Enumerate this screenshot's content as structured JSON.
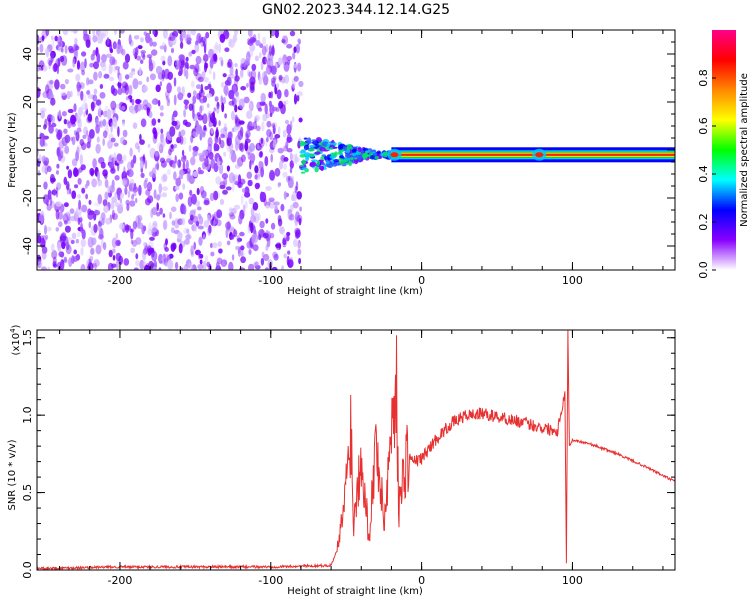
{
  "chart_data": [
    {
      "type": "heatmap",
      "title": "GN02.2023.344.12.14.G25",
      "xlabel": "Height of straight line (km)",
      "ylabel": "Frequency (Hz)",
      "xlim": [
        -255,
        168
      ],
      "ylim": [
        -50,
        50
      ],
      "xticks": [
        -200,
        -100,
        0,
        100
      ],
      "yticks": [
        -40,
        -20,
        0,
        20,
        40
      ],
      "grid": false,
      "noise_region_x": [
        -255,
        -80
      ],
      "signal_region_x": [
        -80,
        168
      ],
      "signal_center_frequency_hz": -2,
      "signal_band_hz": [
        -4,
        1
      ],
      "hotspots_x": [
        -18,
        78
      ],
      "colorbar": {
        "label": "Normalized spectral amplitude",
        "range": [
          0.0,
          1.0
        ],
        "ticks": [
          "0.0",
          "0.2",
          "0.4",
          "0.6",
          "0.8"
        ],
        "colormap": [
          "#ffffff",
          "#8800ff",
          "#0000ff",
          "#00ffff",
          "#00ff00",
          "#ffff00",
          "#ff8800",
          "#ff0000",
          "#ff0088"
        ]
      }
    },
    {
      "type": "line",
      "xlabel": "Height of straight line (km)",
      "ylabel": "SNR (10 * v/v)",
      "y_scale_label": "(x10",
      "y_scale_exp": "4",
      "xlim": [
        -255,
        168
      ],
      "ylim": [
        0.0,
        1.55
      ],
      "xticks": [
        -200,
        -100,
        0,
        100
      ],
      "yticks": [
        "0.0",
        "0.5",
        "1.0",
        "1.5"
      ],
      "grid": false,
      "color": "#e83030",
      "series": [
        {
          "x": [
            -255,
            -200,
            -150,
            -100,
            -60,
            -55,
            -50,
            -47,
            -45,
            -40,
            -35,
            -30,
            -25,
            -20,
            -17,
            -15,
            -10,
            -5,
            0,
            10,
            20,
            30,
            40,
            60,
            80,
            90,
            95,
            96,
            97,
            98,
            100,
            110,
            130,
            150,
            168
          ],
          "y": [
            0.01,
            0.02,
            0.02,
            0.02,
            0.03,
            0.15,
            0.55,
            0.95,
            0.3,
            0.8,
            0.2,
            0.85,
            0.3,
            0.9,
            1.28,
            0.4,
            0.75,
            0.7,
            0.72,
            0.85,
            0.95,
            1.0,
            1.01,
            0.97,
            0.92,
            0.9,
            1.15,
            0.05,
            1.55,
            0.8,
            0.84,
            0.82,
            0.75,
            0.66,
            0.57
          ]
        }
      ]
    }
  ]
}
